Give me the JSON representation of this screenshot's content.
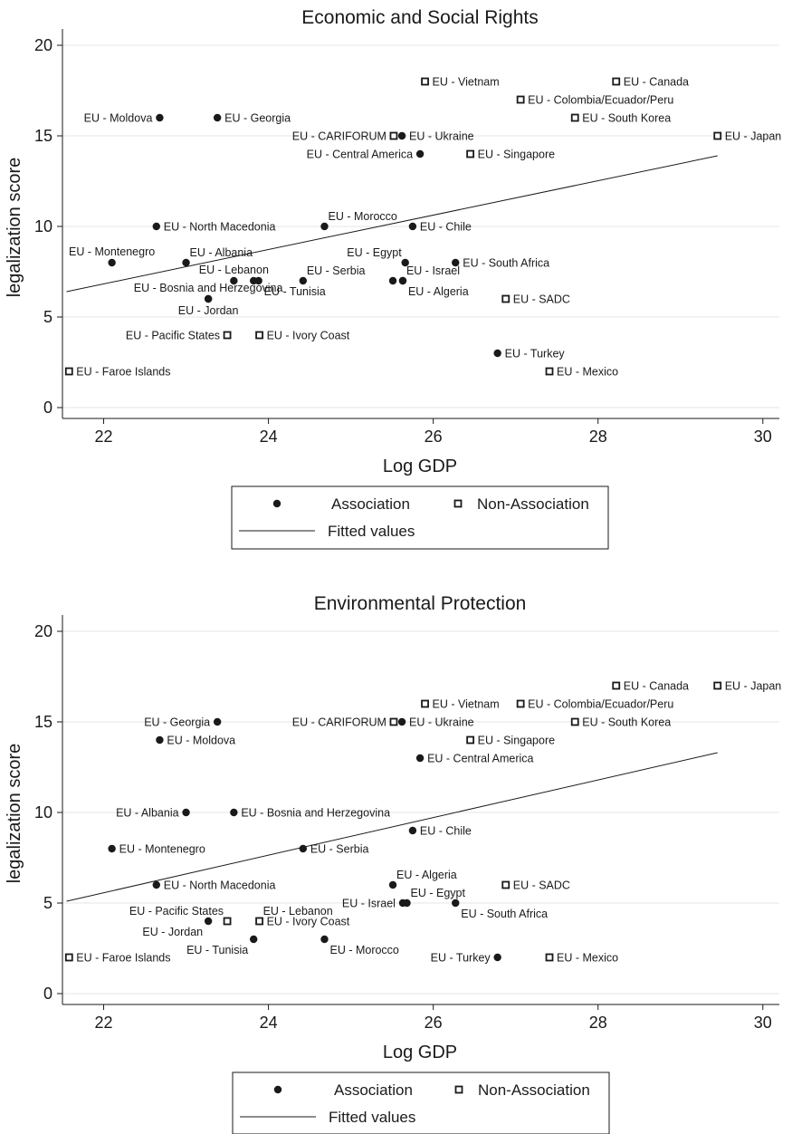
{
  "chart_data": [
    {
      "type": "scatter",
      "title": "Economic and Social Rights",
      "xlabel": "Log GDP",
      "ylabel": "legalization score",
      "xlim": [
        21.5,
        30.2
      ],
      "ylim": [
        -0.6,
        20.8
      ],
      "xticks": [
        "22",
        "24",
        "26",
        "28",
        "30"
      ],
      "yticks": [
        "0",
        "5",
        "10",
        "15",
        "20"
      ],
      "grid": true,
      "fit_line": {
        "name": "Fitted values",
        "x": [
          21.55,
          29.45
        ],
        "y": [
          6.4,
          13.9
        ]
      },
      "legend": {
        "position": "bottom",
        "entries": [
          "Association",
          "Non-Association",
          "Fitted values"
        ]
      },
      "points": [
        {
          "label": "EU - Vietnam",
          "x": 25.9,
          "y": 18,
          "group": "Non-Association",
          "anchor": "r"
        },
        {
          "label": "EU - Canada",
          "x": 28.22,
          "y": 18,
          "group": "Non-Association",
          "anchor": "r"
        },
        {
          "label": "EU - Colombia/Ecuador/Peru",
          "x": 27.06,
          "y": 17,
          "group": "Non-Association",
          "anchor": "r"
        },
        {
          "label": "EU - Moldova",
          "x": 22.68,
          "y": 16,
          "group": "Association",
          "anchor": "l"
        },
        {
          "label": "EU - Georgia",
          "x": 23.38,
          "y": 16,
          "group": "Association",
          "anchor": "r"
        },
        {
          "label": "EU - South Korea",
          "x": 27.72,
          "y": 16,
          "group": "Non-Association",
          "anchor": "r"
        },
        {
          "label": "EU - CARIFORUM",
          "x": 25.52,
          "y": 15,
          "group": "Non-Association",
          "anchor": "l"
        },
        {
          "label": "EU - Ukraine",
          "x": 25.62,
          "y": 15,
          "group": "Association",
          "anchor": "r"
        },
        {
          "label": "EU - Japan",
          "x": 29.45,
          "y": 15,
          "group": "Non-Association",
          "anchor": "r"
        },
        {
          "label": "EU - Central America",
          "x": 25.84,
          "y": 14,
          "group": "Association",
          "anchor": "l"
        },
        {
          "label": "EU - Singapore",
          "x": 26.45,
          "y": 14,
          "group": "Non-Association",
          "anchor": "r"
        },
        {
          "label": "EU - North Macedonia",
          "x": 22.64,
          "y": 10,
          "group": "Association",
          "anchor": "r"
        },
        {
          "label": "EU - Morocco",
          "x": 24.68,
          "y": 10,
          "group": "Association",
          "anchor": "ar"
        },
        {
          "label": "EU - Chile",
          "x": 25.75,
          "y": 10,
          "group": "Association",
          "anchor": "r"
        },
        {
          "label": "EU - Montenegro",
          "x": 22.1,
          "y": 8,
          "group": "Association",
          "anchor": "a"
        },
        {
          "label": "EU - Albania",
          "x": 23.0,
          "y": 8,
          "group": "Association",
          "anchor": "ar"
        },
        {
          "label": "EU - Egypt",
          "x": 25.66,
          "y": 8,
          "group": "Association",
          "anchor": "al"
        },
        {
          "label": "EU - South Africa",
          "x": 26.27,
          "y": 8,
          "group": "Association",
          "anchor": "r"
        },
        {
          "label": "EU - Lebanon",
          "x": 23.58,
          "y": 7,
          "group": "Association",
          "anchor": "a"
        },
        {
          "label": "EU - Tunisia",
          "x": 23.82,
          "y": 7,
          "group": "Association",
          "anchor": "n"
        },
        {
          "label": "EU - Tunisia",
          "x": 23.88,
          "y": 7,
          "group": "Association",
          "anchor": "br"
        },
        {
          "label": "EU - Serbia",
          "x": 24.42,
          "y": 7,
          "group": "Association",
          "anchor": "ar"
        },
        {
          "label": "EU - Algeria",
          "x": 25.51,
          "y": 7,
          "group": "Association",
          "anchor": "n"
        },
        {
          "label": "EU - Israel",
          "x": 25.63,
          "y": 7,
          "group": "Association",
          "anchor": "ar"
        },
        {
          "label": "EU - Algeria",
          "x": 25.63,
          "y": 7,
          "group": "Association",
          "anchor": "br"
        },
        {
          "label": "EU - Bosnia and Herzegovina",
          "x": 23.27,
          "y": 6,
          "group": "Association",
          "anchor": "a"
        },
        {
          "label": "EU - Jordan",
          "x": 23.27,
          "y": 6,
          "group": "Association",
          "anchor": "b"
        },
        {
          "label": "EU - SADC",
          "x": 26.88,
          "y": 6,
          "group": "Non-Association",
          "anchor": "r"
        },
        {
          "label": "EU - Pacific States",
          "x": 23.5,
          "y": 4,
          "group": "Non-Association",
          "anchor": "l"
        },
        {
          "label": "EU - Ivory Coast",
          "x": 23.89,
          "y": 4,
          "group": "Non-Association",
          "anchor": "r"
        },
        {
          "label": "EU - Turkey",
          "x": 26.78,
          "y": 3,
          "group": "Association",
          "anchor": "r"
        },
        {
          "label": "EU - Faroe Islands",
          "x": 21.58,
          "y": 2,
          "group": "Non-Association",
          "anchor": "r"
        },
        {
          "label": "EU - Mexico",
          "x": 27.41,
          "y": 2,
          "group": "Non-Association",
          "anchor": "r"
        }
      ]
    },
    {
      "type": "scatter",
      "title": "Environmental Protection",
      "xlabel": "Log GDP",
      "ylabel": "legalization score",
      "xlim": [
        21.5,
        30.2
      ],
      "ylim": [
        -0.6,
        20.8
      ],
      "xticks": [
        "22",
        "24",
        "26",
        "28",
        "30"
      ],
      "yticks": [
        "0",
        "5",
        "10",
        "15",
        "20"
      ],
      "grid": true,
      "fit_line": {
        "name": "Fitted values",
        "x": [
          21.55,
          29.45
        ],
        "y": [
          5.1,
          13.3
        ]
      },
      "legend": {
        "position": "bottom",
        "entries": [
          "Association",
          "Non-Association",
          "Fitted values"
        ]
      },
      "points": [
        {
          "label": "EU - Canada",
          "x": 28.22,
          "y": 17,
          "group": "Non-Association",
          "anchor": "r"
        },
        {
          "label": "EU - Japan",
          "x": 29.45,
          "y": 17,
          "group": "Non-Association",
          "anchor": "r"
        },
        {
          "label": "EU - Vietnam",
          "x": 25.9,
          "y": 16,
          "group": "Non-Association",
          "anchor": "r"
        },
        {
          "label": "EU - Colombia/Ecuador/Peru",
          "x": 27.06,
          "y": 16,
          "group": "Non-Association",
          "anchor": "r"
        },
        {
          "label": "EU - Georgia",
          "x": 23.38,
          "y": 15,
          "group": "Association",
          "anchor": "l"
        },
        {
          "label": "EU - CARIFORUM",
          "x": 25.52,
          "y": 15,
          "group": "Non-Association",
          "anchor": "l"
        },
        {
          "label": "EU - Ukraine",
          "x": 25.62,
          "y": 15,
          "group": "Association",
          "anchor": "r"
        },
        {
          "label": "EU - South Korea",
          "x": 27.72,
          "y": 15,
          "group": "Non-Association",
          "anchor": "r"
        },
        {
          "label": "EU - Moldova",
          "x": 22.68,
          "y": 14,
          "group": "Association",
          "anchor": "r"
        },
        {
          "label": "EU - Singapore",
          "x": 26.45,
          "y": 14,
          "group": "Non-Association",
          "anchor": "r"
        },
        {
          "label": "EU - Central America",
          "x": 25.84,
          "y": 13,
          "group": "Association",
          "anchor": "r"
        },
        {
          "label": "EU - Albania",
          "x": 23.0,
          "y": 10,
          "group": "Association",
          "anchor": "l"
        },
        {
          "label": "EU - Bosnia and Herzegovina",
          "x": 23.58,
          "y": 10,
          "group": "Association",
          "anchor": "r"
        },
        {
          "label": "EU - Chile",
          "x": 25.75,
          "y": 9,
          "group": "Association",
          "anchor": "r"
        },
        {
          "label": "EU - Montenegro",
          "x": 22.1,
          "y": 8,
          "group": "Association",
          "anchor": "r"
        },
        {
          "label": "EU - Serbia",
          "x": 24.42,
          "y": 8,
          "group": "Association",
          "anchor": "r"
        },
        {
          "label": "EU - North Macedonia",
          "x": 22.64,
          "y": 6,
          "group": "Association",
          "anchor": "r"
        },
        {
          "label": "EU - Algeria",
          "x": 25.51,
          "y": 6,
          "group": "Association",
          "anchor": "ar"
        },
        {
          "label": "EU - SADC",
          "x": 26.88,
          "y": 6,
          "group": "Non-Association",
          "anchor": "r"
        },
        {
          "label": "EU - Israel",
          "x": 25.63,
          "y": 5,
          "group": "Association",
          "anchor": "l"
        },
        {
          "label": "EU - Egypt",
          "x": 25.68,
          "y": 5,
          "group": "Association",
          "anchor": "ar"
        },
        {
          "label": "EU - South Africa",
          "x": 26.27,
          "y": 5,
          "group": "Association",
          "anchor": "br"
        },
        {
          "label": "EU - Pacific States",
          "x": 23.5,
          "y": 4,
          "group": "Non-Association",
          "anchor": "al"
        },
        {
          "label": "EU - Jordan",
          "x": 23.27,
          "y": 4,
          "group": "Association",
          "anchor": "bl"
        },
        {
          "label": "EU - Lebanon",
          "x": 23.89,
          "y": 4,
          "group": "Association",
          "anchor": "ar"
        },
        {
          "label": "EU - Ivory Coast",
          "x": 23.89,
          "y": 4,
          "group": "Non-Association",
          "anchor": "r"
        },
        {
          "label": "EU - Tunisia",
          "x": 23.82,
          "y": 3,
          "group": "Association",
          "anchor": "bl"
        },
        {
          "label": "EU - Morocco",
          "x": 24.68,
          "y": 3,
          "group": "Association",
          "anchor": "br"
        },
        {
          "label": "EU - Faroe Islands",
          "x": 21.58,
          "y": 2,
          "group": "Non-Association",
          "anchor": "r"
        },
        {
          "label": "EU - Turkey",
          "x": 26.78,
          "y": 2,
          "group": "Association",
          "anchor": "l"
        },
        {
          "label": "EU - Mexico",
          "x": 27.41,
          "y": 2,
          "group": "Non-Association",
          "anchor": "r"
        }
      ]
    }
  ]
}
